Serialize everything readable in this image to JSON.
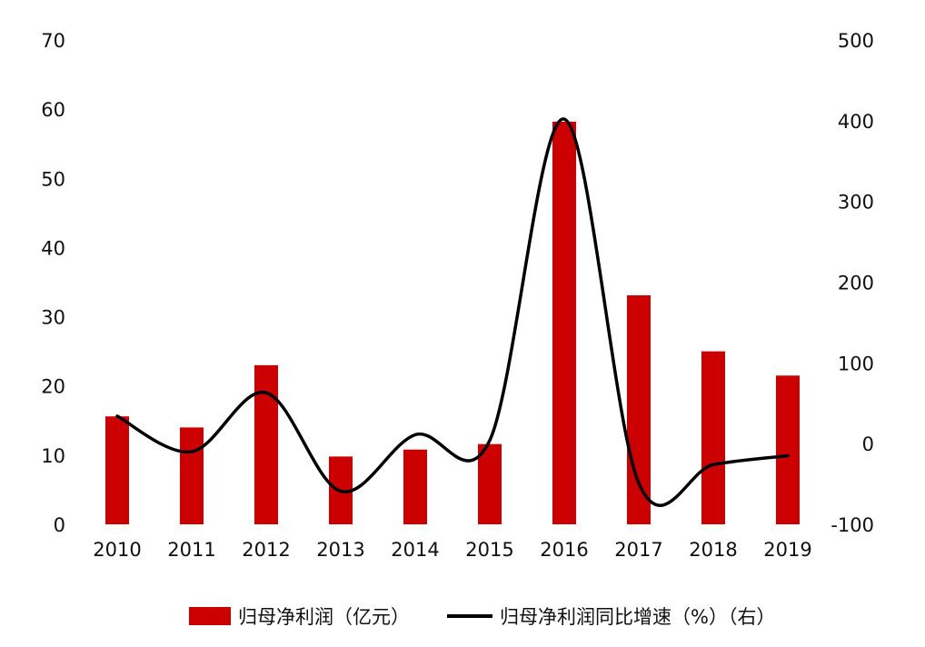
{
  "chart_data": {
    "type": "bar",
    "categories": [
      "2010",
      "2011",
      "2012",
      "2013",
      "2014",
      "2015",
      "2016",
      "2017",
      "2018",
      "2019"
    ],
    "series": [
      {
        "name": "归母净利润（亿元）",
        "type": "bar",
        "axis": "left",
        "color": "#cc0000",
        "values": [
          15.6,
          14.0,
          23.0,
          9.8,
          10.8,
          11.6,
          58.2,
          33.1,
          25.0,
          21.5
        ]
      },
      {
        "name": "归母净利润同比增速（%）（右）",
        "type": "line",
        "axis": "right",
        "smooth": true,
        "color": "#000000",
        "values": [
          34,
          -10,
          63,
          -59,
          11,
          4,
          402,
          -49,
          -26,
          -15
        ]
      }
    ],
    "yleft": {
      "lim": [
        0,
        70
      ],
      "ticks": [
        "0",
        "10",
        "20",
        "30",
        "40",
        "50",
        "60",
        "70"
      ]
    },
    "yright": {
      "lim": [
        -100,
        500
      ],
      "ticks": [
        "-100",
        "0",
        "100",
        "200",
        "300",
        "400",
        "500"
      ]
    },
    "grid": false,
    "legend_position": "bottom"
  }
}
